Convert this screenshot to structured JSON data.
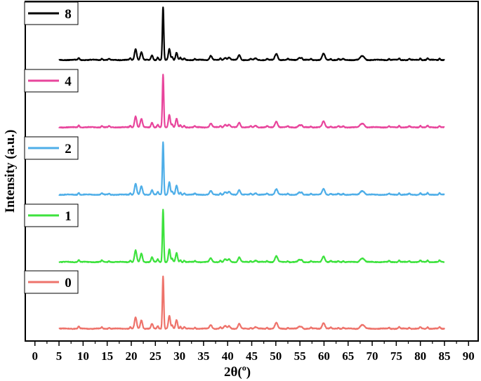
{
  "chart_data": {
    "type": "line",
    "xlabel": "2θ(",
    "xlabel_sup": "o",
    "xlabel_end": ")",
    "ylabel": "Intensity (a.u.)",
    "xlim": [
      -2,
      92
    ],
    "xticks": [
      "0",
      "5",
      "10",
      "15",
      "20",
      "25",
      "30",
      "35",
      "40",
      "45",
      "50",
      "55",
      "60",
      "65",
      "70",
      "75",
      "80",
      "85",
      "90"
    ],
    "y_ticks_shown": false,
    "stacked_offset": true,
    "grid": false,
    "legend_placement": "left, beside each trace",
    "x_range_of_data": [
      5,
      85
    ],
    "peaks_2theta": [
      20.9,
      22.1,
      24.3,
      26.6,
      27.9,
      29.4,
      36.5,
      39.5,
      40.3,
      42.4,
      45.8,
      50.1,
      54.9,
      59.9,
      67.7,
      68.2
    ],
    "series": [
      {
        "name": "8",
        "color": "#000000",
        "relative_intensities": [
          0.21,
          0.15,
          0.09,
          1.0,
          0.21,
          0.14,
          0.08,
          0.04,
          0.05,
          0.09,
          0.03,
          0.12,
          0.04,
          0.12,
          0.05,
          0.05
        ]
      },
      {
        "name": "4",
        "color": "#e8459c",
        "relative_intensities": [
          0.21,
          0.16,
          0.09,
          1.0,
          0.24,
          0.16,
          0.07,
          0.05,
          0.05,
          0.09,
          0.03,
          0.11,
          0.04,
          0.11,
          0.05,
          0.05
        ]
      },
      {
        "name": "2",
        "color": "#4eaee8",
        "relative_intensities": [
          0.21,
          0.16,
          0.09,
          1.0,
          0.24,
          0.17,
          0.07,
          0.05,
          0.05,
          0.09,
          0.03,
          0.11,
          0.04,
          0.11,
          0.05,
          0.05
        ]
      },
      {
        "name": "1",
        "color": "#3de23d",
        "relative_intensities": [
          0.22,
          0.16,
          0.09,
          1.0,
          0.24,
          0.17,
          0.07,
          0.05,
          0.05,
          0.09,
          0.03,
          0.11,
          0.04,
          0.11,
          0.05,
          0.05
        ]
      },
      {
        "name": "0",
        "color": "#ee736b",
        "relative_intensities": [
          0.21,
          0.16,
          0.09,
          1.0,
          0.24,
          0.17,
          0.07,
          0.05,
          0.05,
          0.09,
          0.03,
          0.11,
          0.04,
          0.11,
          0.05,
          0.05
        ]
      }
    ]
  }
}
